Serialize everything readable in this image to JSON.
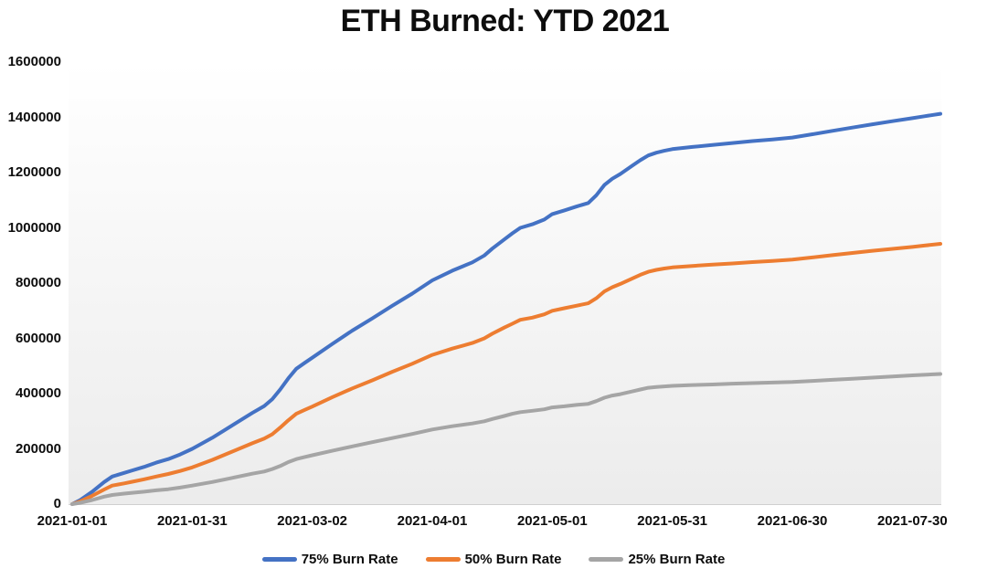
{
  "chart_data": {
    "type": "line",
    "title": "ETH Burned: YTD 2021",
    "grid": false,
    "legend_position": "bottom",
    "colors": {
      "background": "#ffffff",
      "plot_gradient_top": "#ffffff",
      "plot_gradient_bottom": "#ececec",
      "axis_line": "#cfcfcf",
      "text": "#0d0d0d"
    },
    "y_axis": {
      "range": [
        0,
        1600000
      ],
      "tick_values": [
        0,
        200000,
        400000,
        600000,
        800000,
        1000000,
        1200000,
        1400000,
        1600000
      ]
    },
    "x_axis": {
      "unit": "date",
      "day_range": [
        0,
        217
      ],
      "tick_days": [
        0,
        30,
        60,
        90,
        120,
        150,
        180,
        210
      ],
      "tick_labels": [
        "2021-01-01",
        "2021-01-31",
        "2021-03-02",
        "2021-04-01",
        "2021-05-01",
        "2021-05-31",
        "2021-06-30",
        "2021-07-30"
      ]
    },
    "days": [
      0,
      2,
      5,
      8,
      10,
      13,
      15,
      18,
      21,
      24,
      27,
      30,
      35,
      40,
      45,
      48,
      50,
      52,
      54,
      56,
      58,
      60,
      65,
      70,
      75,
      80,
      85,
      90,
      95,
      100,
      103,
      105,
      108,
      110,
      112,
      115,
      118,
      120,
      123,
      126,
      129,
      131,
      133,
      135,
      137,
      140,
      142,
      144,
      146,
      148,
      150,
      155,
      160,
      165,
      170,
      175,
      180,
      185,
      190,
      195,
      200,
      205,
      210,
      213,
      217
    ],
    "series": [
      {
        "name": "75% Burn Rate",
        "color": "#4472C4",
        "values": [
          0,
          15000,
          45000,
          80000,
          100000,
          113000,
          122000,
          135000,
          150000,
          163000,
          180000,
          200000,
          240000,
          285000,
          330000,
          355000,
          380000,
          415000,
          455000,
          490000,
          510000,
          530000,
          580000,
          628000,
          672000,
          718000,
          762000,
          810000,
          845000,
          875000,
          900000,
          925000,
          958000,
          980000,
          1000000,
          1013000,
          1030000,
          1050000,
          1063000,
          1077000,
          1090000,
          1118000,
          1155000,
          1178000,
          1195000,
          1225000,
          1245000,
          1262000,
          1272000,
          1279000,
          1285000,
          1293000,
          1300000,
          1307000,
          1314000,
          1320000,
          1327000,
          1339000,
          1351000,
          1363000,
          1375000,
          1386000,
          1397000,
          1404000,
          1413000
        ]
      },
      {
        "name": "50% Burn Rate",
        "color": "#ED7D31",
        "values": [
          0,
          10000,
          30000,
          53000,
          67000,
          75000,
          81000,
          90000,
          100000,
          109000,
          120000,
          133000,
          160000,
          190000,
          220000,
          237000,
          253000,
          277000,
          303000,
          327000,
          340000,
          353000,
          387000,
          419000,
          448000,
          479000,
          508000,
          540000,
          563000,
          583000,
          600000,
          617000,
          639000,
          653000,
          667000,
          675000,
          687000,
          700000,
          709000,
          718000,
          727000,
          745000,
          770000,
          785000,
          797000,
          817000,
          830000,
          841000,
          848000,
          853000,
          857000,
          862000,
          867000,
          871000,
          876000,
          880000,
          885000,
          893000,
          901000,
          909000,
          917000,
          924000,
          931000,
          936000,
          942000
        ]
      },
      {
        "name": "25% Burn Rate",
        "color": "#A5A5A5",
        "values": [
          0,
          5000,
          15000,
          27000,
          33000,
          38000,
          41000,
          45000,
          50000,
          54000,
          60000,
          67000,
          80000,
          95000,
          110000,
          118000,
          127000,
          138000,
          152000,
          163000,
          170000,
          177000,
          193000,
          209000,
          224000,
          239000,
          254000,
          270000,
          282000,
          292000,
          300000,
          308000,
          319000,
          327000,
          333000,
          338000,
          343000,
          350000,
          354000,
          359000,
          363000,
          373000,
          385000,
          393000,
          398000,
          408000,
          415000,
          421000,
          424000,
          426000,
          428000,
          431000,
          433000,
          436000,
          438000,
          440000,
          442000,
          446000,
          450000,
          454000,
          458000,
          462000,
          466000,
          468000,
          471000
        ]
      }
    ]
  }
}
